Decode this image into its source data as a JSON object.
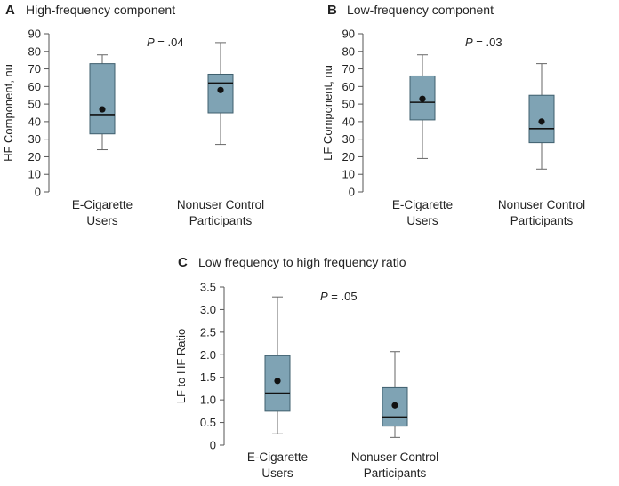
{
  "chart_data": [
    {
      "id": "A",
      "type": "box",
      "panel_letter": "A",
      "title": "High-frequency component",
      "ylabel": "HF Component, nu",
      "xlabel": "",
      "ylim": [
        0,
        90
      ],
      "yticks": [
        "0",
        "10",
        "20",
        "30",
        "40",
        "50",
        "60",
        "70",
        "80",
        "90"
      ],
      "ytick_values": [
        0,
        10,
        20,
        30,
        40,
        50,
        60,
        70,
        80,
        90
      ],
      "categories": [
        [
          "E-Cigarette",
          "Users"
        ],
        [
          "Nonuser Control",
          "Participants"
        ]
      ],
      "boxes": [
        {
          "whisker_low": 24,
          "q1": 33,
          "median": 44,
          "q3": 73,
          "whisker_high": 78,
          "mean": 47
        },
        {
          "whisker_low": 27,
          "q1": 45,
          "median": 62,
          "q3": 67,
          "whisker_high": 85,
          "mean": 58
        }
      ],
      "p_label": "P",
      "p_value": " = .04",
      "box_color": "#7fa3b4"
    },
    {
      "id": "B",
      "type": "box",
      "panel_letter": "B",
      "title": "Low-frequency component",
      "ylabel": "LF Component, nu",
      "xlabel": "",
      "ylim": [
        0,
        90
      ],
      "yticks": [
        "0",
        "10",
        "20",
        "30",
        "40",
        "50",
        "60",
        "70",
        "80",
        "90"
      ],
      "ytick_values": [
        0,
        10,
        20,
        30,
        40,
        50,
        60,
        70,
        80,
        90
      ],
      "categories": [
        [
          "E-Cigarette",
          "Users"
        ],
        [
          "Nonuser Control",
          "Participants"
        ]
      ],
      "boxes": [
        {
          "whisker_low": 19,
          "q1": 41,
          "median": 51,
          "q3": 66,
          "whisker_high": 78,
          "mean": 53
        },
        {
          "whisker_low": 13,
          "q1": 28,
          "median": 36,
          "q3": 55,
          "whisker_high": 73,
          "mean": 40
        }
      ],
      "p_label": "P",
      "p_value": " = .03",
      "box_color": "#7fa3b4"
    },
    {
      "id": "C",
      "type": "box",
      "panel_letter": "C",
      "title": "Low frequency to high frequency ratio",
      "ylabel": "LF to HF Ratio",
      "xlabel": "",
      "ylim": [
        0,
        3.5
      ],
      "yticks": [
        "0",
        "0.5",
        "1.0",
        "1.5",
        "2.0",
        "2.5",
        "3.0",
        "3.5"
      ],
      "ytick_values": [
        0,
        0.5,
        1.0,
        1.5,
        2.0,
        2.5,
        3.0,
        3.5
      ],
      "categories": [
        [
          "E-Cigarette",
          "Users"
        ],
        [
          "Nonuser Control",
          "Participants"
        ]
      ],
      "boxes": [
        {
          "whisker_low": 0.25,
          "q1": 0.75,
          "median": 1.15,
          "q3": 1.98,
          "whisker_high": 3.28,
          "mean": 1.42
        },
        {
          "whisker_low": 0.17,
          "q1": 0.42,
          "median": 0.62,
          "q3": 1.27,
          "whisker_high": 2.07,
          "mean": 0.88
        }
      ],
      "p_label": "P",
      "p_value": " = .05",
      "box_color": "#7fa3b4"
    }
  ]
}
